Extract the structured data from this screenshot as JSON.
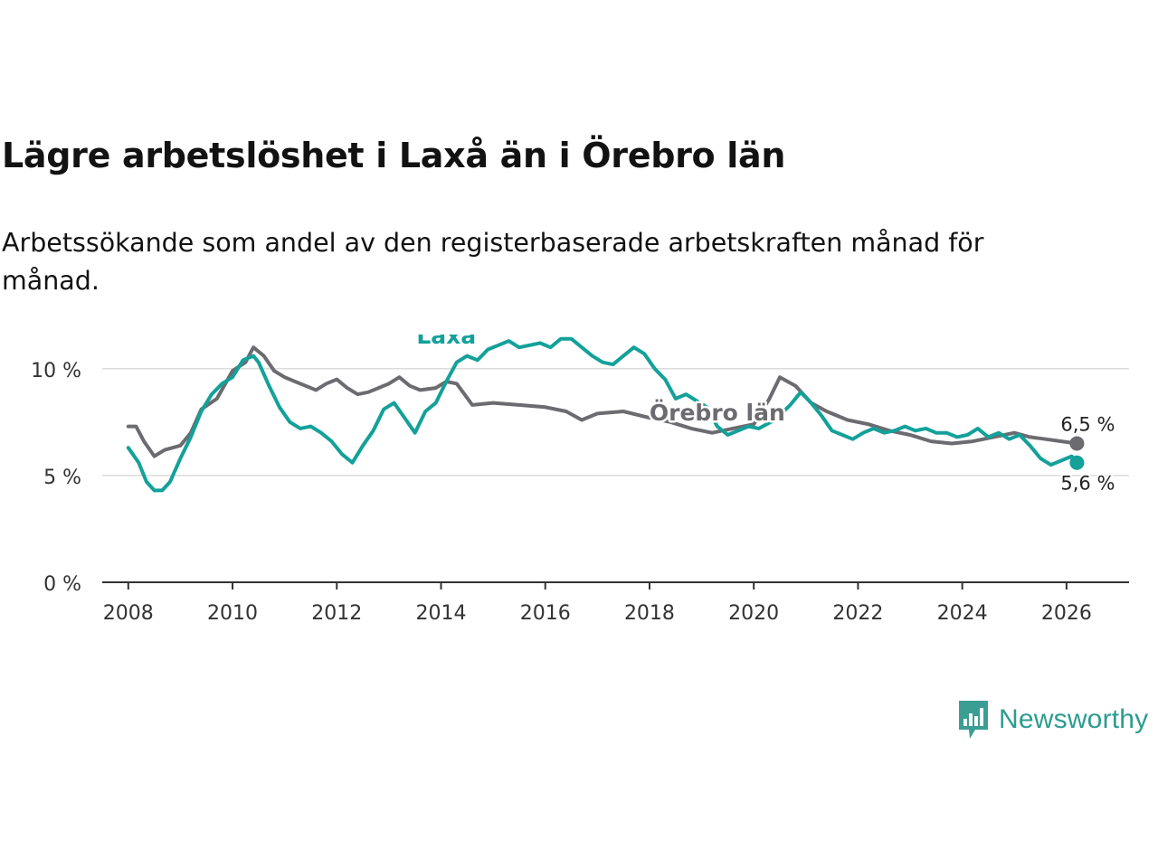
{
  "title": "Lägre arbetslöshet i Laxå än i Örebro län",
  "subtitle": "Arbetssökande som andel av den registerbaserade arbetskraften månad för månad.",
  "brand": {
    "name": "Newsworthy",
    "color": "#3a9e94"
  },
  "chart_data": {
    "type": "line",
    "title": "Lägre arbetslöshet i Laxå än i Örebro län",
    "xlabel": "",
    "ylabel": "",
    "xlim": [
      2007.5,
      2027.2
    ],
    "ylim": [
      0,
      11.6
    ],
    "x_ticks": [
      2008,
      2010,
      2012,
      2014,
      2016,
      2018,
      2020,
      2022,
      2024,
      2026
    ],
    "x_tick_labels": [
      "2008",
      "2010",
      "2012",
      "2014",
      "2016",
      "2018",
      "2020",
      "2022",
      "2024",
      "2026"
    ],
    "y_ticks": [
      0,
      5,
      10
    ],
    "y_tick_labels": [
      "0 %",
      "5 %",
      "10 %"
    ],
    "grid": "horizontal",
    "series": [
      {
        "name": "Örebro län",
        "color": "#6b6b70",
        "end_label": "6,5 %",
        "points": [
          [
            2008.0,
            7.3
          ],
          [
            2008.15,
            7.3
          ],
          [
            2008.3,
            6.6
          ],
          [
            2008.5,
            5.9
          ],
          [
            2008.7,
            6.2
          ],
          [
            2009.0,
            6.4
          ],
          [
            2009.2,
            7.0
          ],
          [
            2009.4,
            8.1
          ],
          [
            2009.7,
            8.6
          ],
          [
            2010.0,
            9.9
          ],
          [
            2010.25,
            10.3
          ],
          [
            2010.4,
            11.0
          ],
          [
            2010.6,
            10.6
          ],
          [
            2010.8,
            9.9
          ],
          [
            2011.0,
            9.6
          ],
          [
            2011.2,
            9.4
          ],
          [
            2011.4,
            9.2
          ],
          [
            2011.6,
            9.0
          ],
          [
            2011.8,
            9.3
          ],
          [
            2012.0,
            9.5
          ],
          [
            2012.2,
            9.1
          ],
          [
            2012.4,
            8.8
          ],
          [
            2012.6,
            8.9
          ],
          [
            2012.8,
            9.1
          ],
          [
            2013.0,
            9.3
          ],
          [
            2013.2,
            9.6
          ],
          [
            2013.4,
            9.2
          ],
          [
            2013.6,
            9.0
          ],
          [
            2013.9,
            9.1
          ],
          [
            2014.1,
            9.4
          ],
          [
            2014.3,
            9.3
          ],
          [
            2014.6,
            8.3
          ],
          [
            2015.0,
            8.4
          ],
          [
            2015.5,
            8.3
          ],
          [
            2016.0,
            8.2
          ],
          [
            2016.4,
            8.0
          ],
          [
            2016.7,
            7.6
          ],
          [
            2017.0,
            7.9
          ],
          [
            2017.5,
            8.0
          ],
          [
            2018.0,
            7.7
          ],
          [
            2018.4,
            7.5
          ],
          [
            2018.8,
            7.2
          ],
          [
            2019.2,
            7.0
          ],
          [
            2019.6,
            7.2
          ],
          [
            2020.0,
            7.4
          ],
          [
            2020.3,
            8.6
          ],
          [
            2020.5,
            9.6
          ],
          [
            2020.8,
            9.2
          ],
          [
            2021.1,
            8.4
          ],
          [
            2021.4,
            8.0
          ],
          [
            2021.8,
            7.6
          ],
          [
            2022.2,
            7.4
          ],
          [
            2022.6,
            7.1
          ],
          [
            2023.0,
            6.9
          ],
          [
            2023.4,
            6.6
          ],
          [
            2023.8,
            6.5
          ],
          [
            2024.2,
            6.6
          ],
          [
            2024.6,
            6.8
          ],
          [
            2025.0,
            7.0
          ],
          [
            2025.3,
            6.8
          ],
          [
            2025.6,
            6.7
          ],
          [
            2025.9,
            6.6
          ],
          [
            2026.2,
            6.5
          ]
        ]
      },
      {
        "name": "Laxå",
        "color": "#13a19a",
        "end_label": "5,6 %",
        "points": [
          [
            2008.0,
            6.3
          ],
          [
            2008.2,
            5.6
          ],
          [
            2008.35,
            4.7
          ],
          [
            2008.5,
            4.3
          ],
          [
            2008.65,
            4.3
          ],
          [
            2008.8,
            4.7
          ],
          [
            2009.0,
            5.8
          ],
          [
            2009.2,
            6.8
          ],
          [
            2009.4,
            8.0
          ],
          [
            2009.6,
            8.8
          ],
          [
            2009.8,
            9.3
          ],
          [
            2010.0,
            9.6
          ],
          [
            2010.2,
            10.4
          ],
          [
            2010.4,
            10.6
          ],
          [
            2010.5,
            10.3
          ],
          [
            2010.7,
            9.2
          ],
          [
            2010.9,
            8.2
          ],
          [
            2011.1,
            7.5
          ],
          [
            2011.3,
            7.2
          ],
          [
            2011.5,
            7.3
          ],
          [
            2011.7,
            7.0
          ],
          [
            2011.9,
            6.6
          ],
          [
            2012.1,
            6.0
          ],
          [
            2012.3,
            5.6
          ],
          [
            2012.5,
            6.4
          ],
          [
            2012.7,
            7.1
          ],
          [
            2012.9,
            8.1
          ],
          [
            2013.1,
            8.4
          ],
          [
            2013.3,
            7.7
          ],
          [
            2013.5,
            7.0
          ],
          [
            2013.7,
            8.0
          ],
          [
            2013.9,
            8.4
          ],
          [
            2014.1,
            9.4
          ],
          [
            2014.3,
            10.3
          ],
          [
            2014.5,
            10.6
          ],
          [
            2014.7,
            10.4
          ],
          [
            2014.9,
            10.9
          ],
          [
            2015.1,
            11.1
          ],
          [
            2015.3,
            11.3
          ],
          [
            2015.5,
            11.0
          ],
          [
            2015.7,
            11.1
          ],
          [
            2015.9,
            11.2
          ],
          [
            2016.1,
            11.0
          ],
          [
            2016.3,
            11.4
          ],
          [
            2016.5,
            11.4
          ],
          [
            2016.7,
            11.0
          ],
          [
            2016.9,
            10.6
          ],
          [
            2017.1,
            10.3
          ],
          [
            2017.3,
            10.2
          ],
          [
            2017.5,
            10.6
          ],
          [
            2017.7,
            11.0
          ],
          [
            2017.9,
            10.7
          ],
          [
            2018.1,
            10.0
          ],
          [
            2018.3,
            9.5
          ],
          [
            2018.5,
            8.6
          ],
          [
            2018.7,
            8.8
          ],
          [
            2018.9,
            8.5
          ],
          [
            2019.1,
            8.2
          ],
          [
            2019.3,
            7.3
          ],
          [
            2019.5,
            6.9
          ],
          [
            2019.7,
            7.1
          ],
          [
            2019.9,
            7.3
          ],
          [
            2020.1,
            7.2
          ],
          [
            2020.4,
            7.6
          ],
          [
            2020.7,
            8.3
          ],
          [
            2020.9,
            8.9
          ],
          [
            2021.1,
            8.4
          ],
          [
            2021.3,
            7.8
          ],
          [
            2021.5,
            7.1
          ],
          [
            2021.7,
            6.9
          ],
          [
            2021.9,
            6.7
          ],
          [
            2022.1,
            7.0
          ],
          [
            2022.3,
            7.2
          ],
          [
            2022.5,
            7.0
          ],
          [
            2022.7,
            7.1
          ],
          [
            2022.9,
            7.3
          ],
          [
            2023.1,
            7.1
          ],
          [
            2023.3,
            7.2
          ],
          [
            2023.5,
            7.0
          ],
          [
            2023.7,
            7.0
          ],
          [
            2023.9,
            6.8
          ],
          [
            2024.1,
            6.9
          ],
          [
            2024.3,
            7.2
          ],
          [
            2024.5,
            6.8
          ],
          [
            2024.7,
            7.0
          ],
          [
            2024.9,
            6.7
          ],
          [
            2025.1,
            6.9
          ],
          [
            2025.3,
            6.4
          ],
          [
            2025.5,
            5.8
          ],
          [
            2025.7,
            5.5
          ],
          [
            2025.9,
            5.7
          ],
          [
            2026.1,
            5.9
          ],
          [
            2026.2,
            5.6
          ]
        ]
      }
    ],
    "annotations": [
      {
        "series": "Laxå",
        "text": "Laxå",
        "x": 2014.1,
        "y": 11.6
      },
      {
        "series": "Örebro län",
        "text": "Örebro län",
        "x": 2019.3,
        "y": 8.0
      }
    ]
  }
}
